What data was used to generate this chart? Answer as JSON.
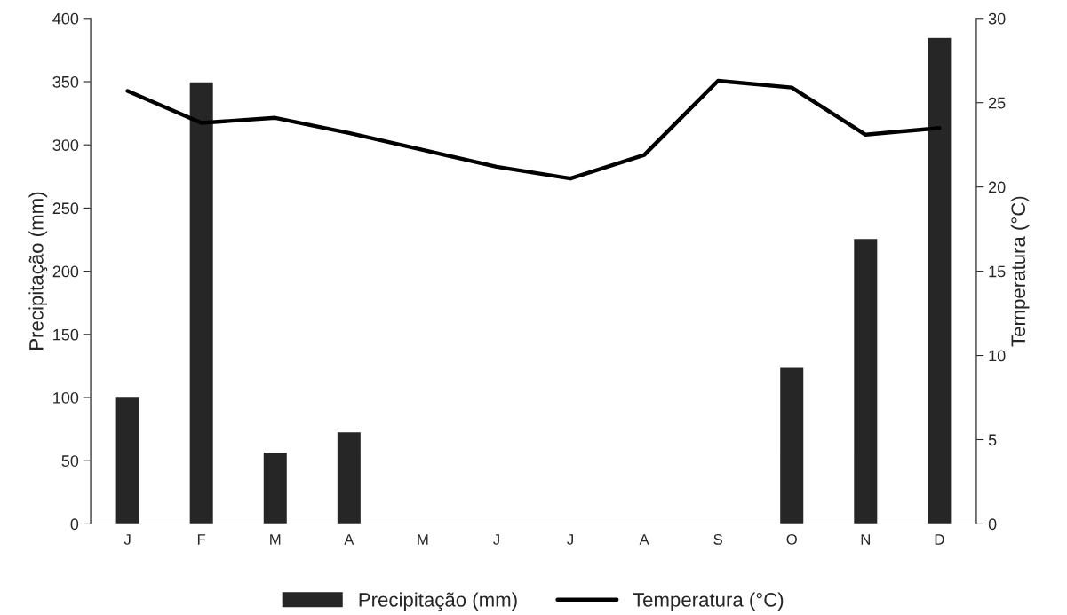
{
  "chart_data": {
    "type": "bar",
    "xlabel": null,
    "ylabel": "Precipitação (mm)",
    "y2label": "Temperatura (°C)",
    "categories": [
      "J",
      "F",
      "M",
      "A",
      "M",
      "J",
      "J",
      "A",
      "S",
      "O",
      "N",
      "D"
    ],
    "series": [
      {
        "name": "Precipitação (mm)",
        "color": "#262626",
        "values": [
          101,
          350,
          57,
          73,
          null,
          null,
          null,
          null,
          null,
          124,
          226,
          385
        ]
      },
      {
        "name": "Temperatura (°C)",
        "type": "line",
        "axis": "y2",
        "color": "#000000",
        "values": [
          25.7,
          23.8,
          24.1,
          23.2,
          22.2,
          21.2,
          20.5,
          21.9,
          26.3,
          25.9,
          23.1,
          23.5
        ]
      }
    ],
    "ylim": [
      0,
      400
    ],
    "yticks": [
      0,
      50,
      100,
      150,
      200,
      250,
      300,
      350,
      400
    ],
    "y2lim": [
      0,
      30
    ],
    "y2ticks": [
      0,
      5,
      10,
      15,
      20,
      25,
      30
    ],
    "grid": false,
    "legend": "bottom",
    "marker": "none",
    "line_style": "solid"
  }
}
